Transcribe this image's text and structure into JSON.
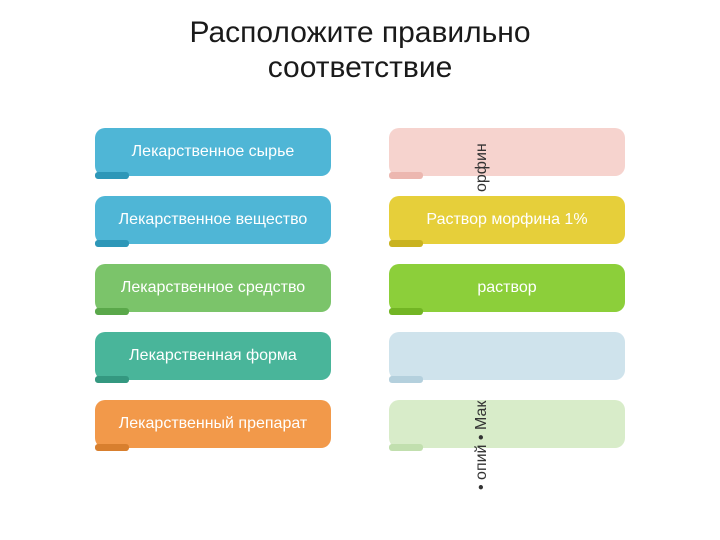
{
  "title_line1": "Расположите правильно",
  "title_line2": "соответствие",
  "left": [
    {
      "label": "Лекарственное сырье",
      "bg": "#4fb6d6",
      "tab": "#2d97b8"
    },
    {
      "label": "Лекарственное вещество",
      "bg": "#4fb6d6",
      "tab": "#2d97b8"
    },
    {
      "label": "Лекарственное средство",
      "bg": "#7bc46a",
      "tab": "#5aa84a"
    },
    {
      "label": "Лекарственная форма",
      "bg": "#49b59a",
      "tab": "#349880"
    },
    {
      "label": "Лекарственный препарат",
      "bg": "#f2994a",
      "tab": "#d87f2e"
    }
  ],
  "right": [
    {
      "label": "",
      "bg": "#f6d3ce",
      "tab": "#ecb7b0",
      "text": "#ffffff"
    },
    {
      "label": "Раствор морфина 1%",
      "bg": "#e6cf3a",
      "tab": "#c9b21f",
      "text": "#ffffff"
    },
    {
      "label": "раствор",
      "bg": "#8ccf3a",
      "tab": "#72b524",
      "text": "#ffffff"
    },
    {
      "label": "",
      "bg": "#cfe3ec",
      "tab": "#b4d0dd",
      "text": "#ffffff"
    },
    {
      "label": "",
      "bg": "#d8ecc9",
      "tab": "#c1dfae",
      "text": "#ffffff"
    }
  ],
  "vert1": "орфин",
  "vert2": "• опий\n• Мак",
  "fontsize_title": 30,
  "fontsize_label": 16,
  "pill_radius": 10
}
